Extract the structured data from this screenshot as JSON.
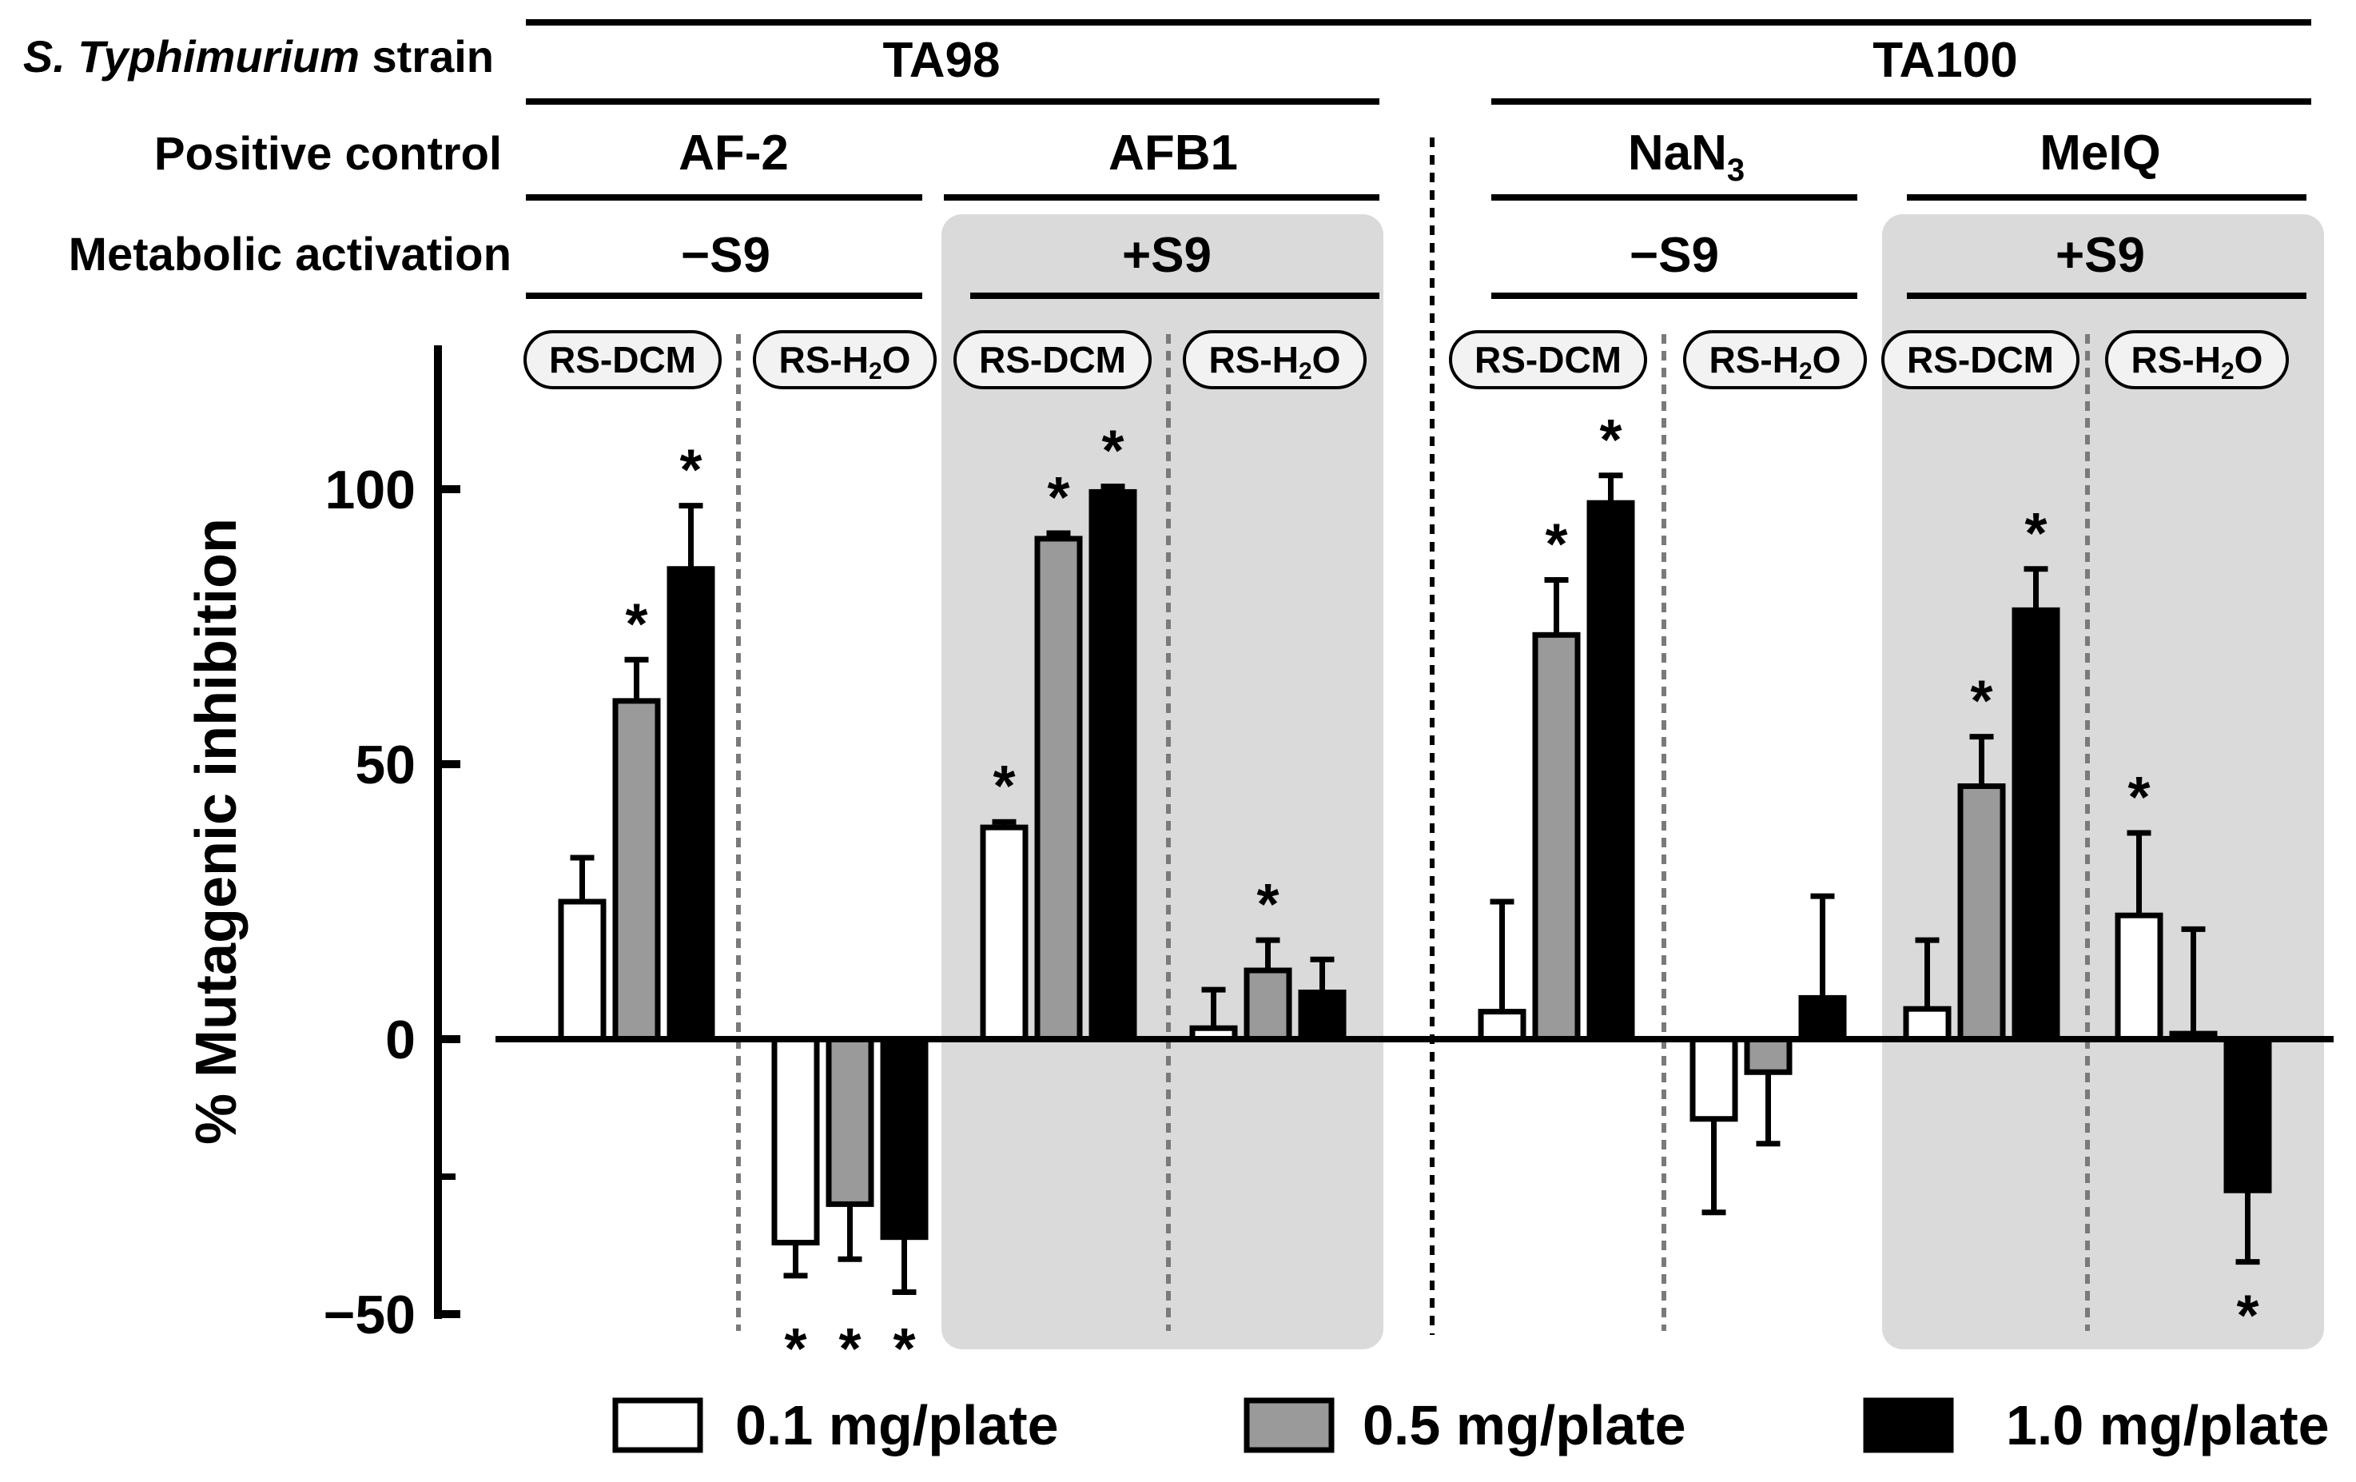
{
  "chart_data": {
    "type": "bar",
    "ylabel": "% Mutagenic inhibition",
    "ylim": [
      -50,
      125
    ],
    "yticks": [
      -50,
      0,
      50,
      100
    ],
    "header": {
      "strain_label": "S. Typhimurium",
      "strain_label_suffix": "strain",
      "positive_control_label": "Positive control",
      "metabolic_label": "Metabolic activation",
      "strains": [
        "TA98",
        "TA100"
      ],
      "controls": [
        "AF-2",
        "AFB1",
        "NaN",
        "MeIQ"
      ],
      "control_subscript": "3",
      "activations": [
        "−S9",
        "+S9",
        "−S9",
        "+S9"
      ]
    },
    "extract_labels": {
      "dcm": "RS-DCM",
      "h2o_prefix": "RS-H",
      "h2o_sub": "2",
      "h2o_suffix": "O"
    },
    "significance_mark": "*",
    "series_names": [
      "0.1 mg/plate",
      "0.5 mg/plate",
      "1.0 mg/plate"
    ],
    "series_colors": [
      "#ffffff",
      "#9a9a9a",
      "#000000"
    ],
    "shade_color": "#dadada",
    "groups": [
      {
        "control": "AF-2",
        "activation": "−S9",
        "extract": "RS-DCM",
        "values": [
          25,
          61.5,
          85.5
        ],
        "errors": [
          8,
          7.5,
          11.5
        ],
        "significant": [
          false,
          true,
          true
        ]
      },
      {
        "control": "AF-2",
        "activation": "−S9",
        "extract": "RS-H2O",
        "values": [
          -37,
          -30,
          -36
        ],
        "errors": [
          6,
          10,
          10
        ],
        "significant": [
          true,
          true,
          true
        ]
      },
      {
        "control": "AFB1",
        "activation": "+S9",
        "extract": "RS-DCM",
        "values": [
          38.5,
          91,
          99.5
        ],
        "errors": [
          1,
          1,
          1
        ],
        "significant": [
          true,
          true,
          true
        ]
      },
      {
        "control": "AFB1",
        "activation": "+S9",
        "extract": "RS-H2O",
        "values": [
          2,
          12.5,
          8.5
        ],
        "errors": [
          7,
          5.5,
          6
        ],
        "significant": [
          false,
          true,
          false
        ]
      },
      {
        "control": "NaN3",
        "activation": "−S9",
        "extract": "RS-DCM",
        "values": [
          5,
          73.5,
          97.5
        ],
        "errors": [
          20,
          10,
          5
        ],
        "significant": [
          false,
          true,
          true
        ]
      },
      {
        "control": "NaN3",
        "activation": "−S9",
        "extract": "RS-H2O",
        "values": [
          -14.5,
          -6,
          7.5
        ],
        "errors": [
          17,
          13,
          18.5
        ],
        "significant": [
          false,
          false,
          false
        ]
      },
      {
        "control": "MeIQ",
        "activation": "+S9",
        "extract": "RS-DCM",
        "values": [
          5.5,
          46,
          78
        ],
        "errors": [
          12.5,
          9,
          7.5
        ],
        "significant": [
          false,
          true,
          true
        ]
      },
      {
        "control": "MeIQ",
        "activation": "+S9",
        "extract": "RS-H2O",
        "values": [
          22.5,
          1,
          -27.5
        ],
        "errors": [
          15,
          19,
          13
        ],
        "significant": [
          true,
          false,
          true
        ]
      }
    ]
  }
}
